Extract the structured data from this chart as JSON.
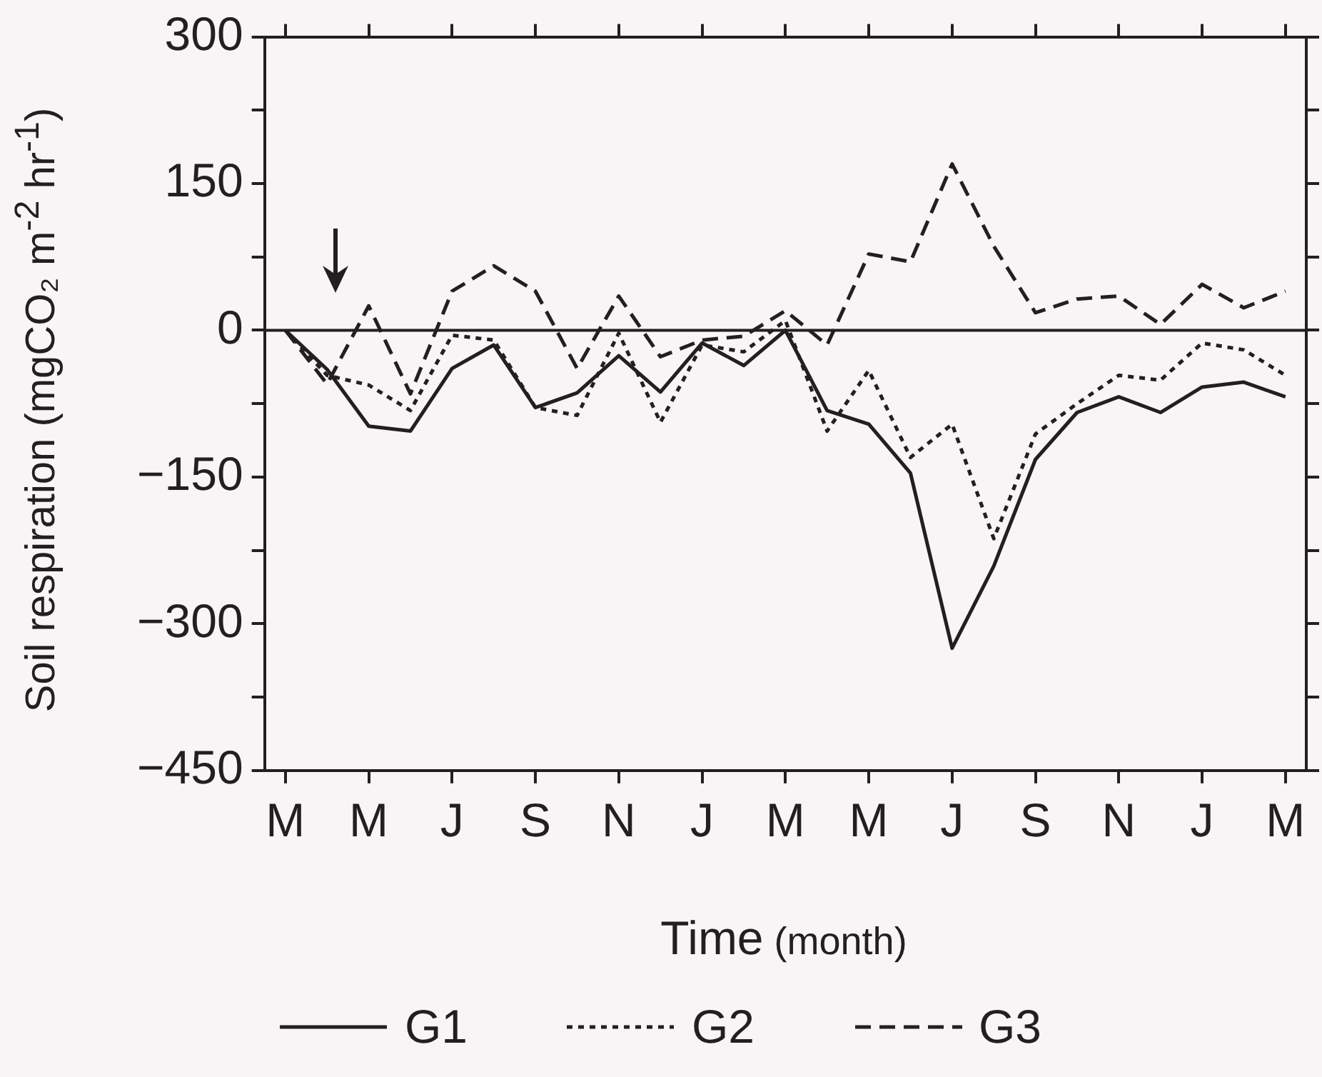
{
  "chart_data": {
    "type": "line",
    "xlabel": "Time (month)",
    "ylabel": "Soil respiration (mgCO₂ m$^{-2}$ hr$^{-1}$)",
    "categories": [
      "M",
      null,
      "M",
      null,
      "J",
      null,
      "S",
      null,
      "N",
      null,
      "J",
      null,
      "M",
      null,
      "M",
      null,
      "J",
      null,
      "S",
      null,
      "N",
      null,
      "J",
      null,
      "M"
    ],
    "ylim": [
      -450,
      300
    ],
    "yticks": [
      {
        "value": -450,
        "label": "−450"
      },
      {
        "value": -375,
        "label": null
      },
      {
        "value": -300,
        "label": "−300"
      },
      {
        "value": -225,
        "label": null
      },
      {
        "value": -150,
        "label": "−150"
      },
      {
        "value": -75,
        "label": null
      },
      0,
      {
        "value": 75,
        "label": null
      },
      150,
      {
        "value": 225,
        "label": null
      },
      300
    ],
    "series": [
      {
        "name": "G1",
        "color": "#231f20",
        "line_style": "solid",
        "values": [
          0,
          -40,
          -98,
          -103,
          -39,
          -15,
          -79,
          -64,
          -26,
          -63,
          -13,
          -36,
          0,
          -82,
          -96,
          -146,
          -325,
          -241,
          -132,
          -84,
          -68,
          -84,
          -58,
          -53,
          -68
        ]
      },
      {
        "name": "G2",
        "color": "#231f20",
        "line_style": "dotted",
        "values": [
          0,
          -46,
          -56,
          -82,
          -5,
          -10,
          -79,
          -87,
          -3,
          -94,
          -15,
          -22,
          10,
          -103,
          -41,
          -130,
          -96,
          -213,
          -106,
          -75,
          -46,
          -51,
          -13,
          -20,
          -46
        ]
      },
      {
        "name": "G3",
        "color": "#231f20",
        "line_style": "dashed",
        "values": [
          0,
          -55,
          25,
          -65,
          40,
          66,
          40,
          -39,
          35,
          -27,
          -10,
          -6,
          20,
          -15,
          78,
          70,
          170,
          86,
          18,
          32,
          35,
          6,
          47,
          23,
          40
        ]
      }
    ],
    "ref_lines": [
      {
        "axis": "y",
        "value": 0
      }
    ],
    "grid": false,
    "legend": "bottom",
    "marker": "none"
  }
}
